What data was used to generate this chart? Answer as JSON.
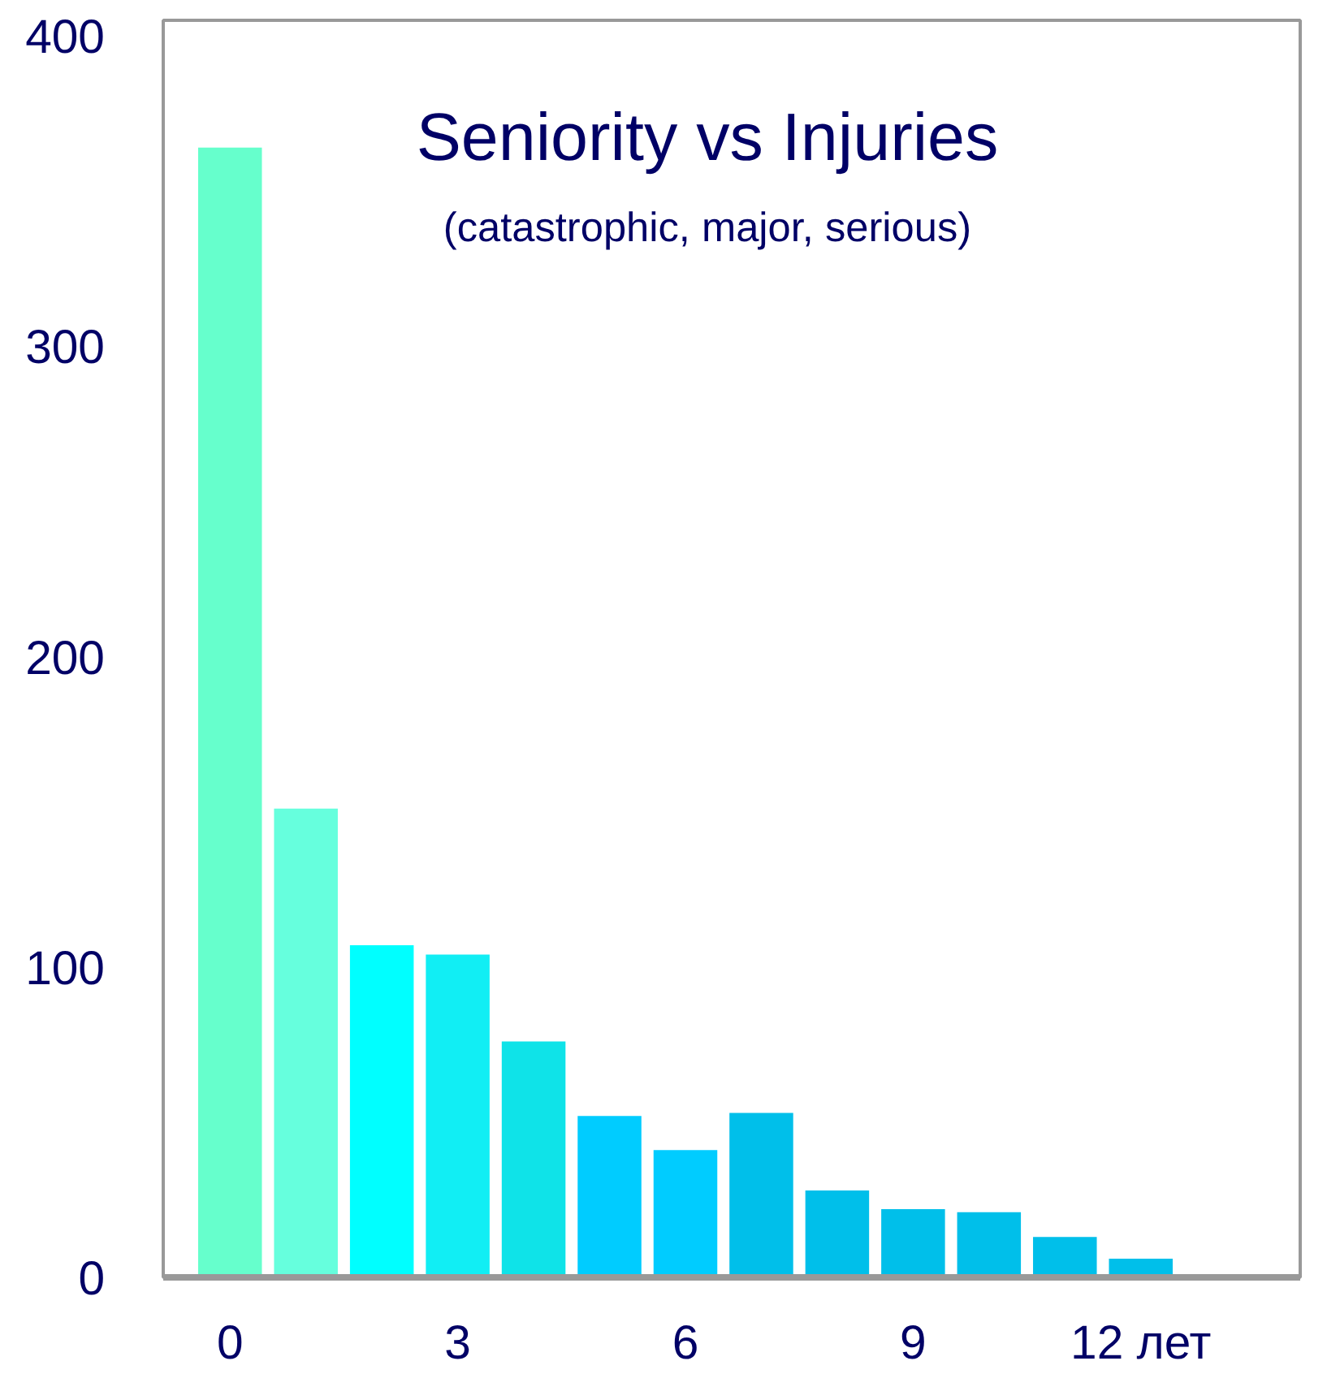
{
  "chart_data": {
    "type": "bar",
    "title": "Seniority vs Injuries",
    "subtitle": "(catastrophic, major, serious)",
    "categories": [
      "0",
      null,
      null,
      "3",
      null,
      null,
      "6",
      null,
      null,
      "9",
      null,
      null,
      "12 лет"
    ],
    "values": [
      364,
      151,
      107,
      104,
      76,
      52,
      41,
      53,
      28,
      22,
      21,
      13,
      6
    ],
    "colors": [
      "#66ffcc",
      "#66ffdd",
      "#00ffff",
      "#11eef4",
      "#0fe3e8",
      "#00ccff",
      "#00ccff",
      "#00bfea",
      "#00bfea",
      "#00bfea",
      "#00bfea",
      "#00bfea",
      "#00bfea"
    ],
    "ylim": [
      0,
      405
    ],
    "yticks": [
      0,
      100,
      200,
      300,
      400
    ],
    "grid": false
  }
}
